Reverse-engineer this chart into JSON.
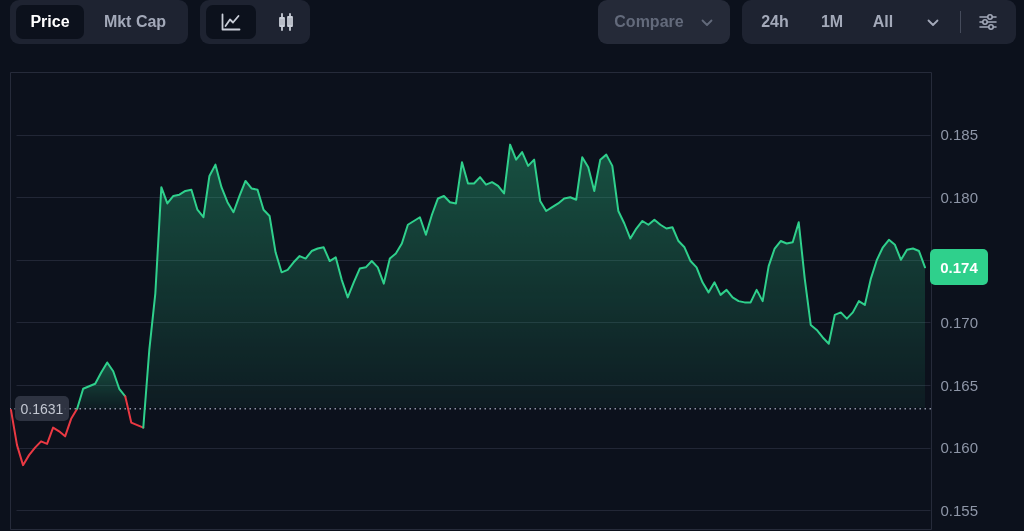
{
  "chart_data": {
    "type": "area",
    "categories": [
      null,
      null,
      null,
      null,
      null,
      null,
      null,
      null,
      null,
      null,
      null,
      null,
      null,
      null,
      null,
      null,
      null,
      null,
      null,
      null,
      null,
      null,
      null,
      null,
      null,
      null,
      null,
      null,
      null,
      null,
      null,
      null,
      null,
      null,
      null,
      null,
      null,
      null,
      null,
      null,
      null,
      null,
      null,
      null,
      null,
      null,
      null,
      null,
      null,
      null,
      null,
      null,
      null,
      null,
      null,
      null,
      null,
      null,
      null,
      null,
      null,
      null,
      null,
      null,
      null,
      null,
      null,
      null,
      null,
      null,
      null,
      null,
      null,
      null,
      null,
      null,
      null,
      null,
      null,
      null,
      null,
      null,
      null,
      null,
      null,
      null,
      null,
      null,
      null,
      null,
      null,
      null,
      null,
      null,
      null,
      null,
      null,
      null,
      null,
      null,
      null,
      null,
      null,
      null,
      null,
      null,
      null,
      null,
      null,
      null,
      null,
      null,
      null,
      null,
      null,
      null,
      null,
      null,
      null,
      null,
      null,
      null,
      null,
      null,
      null,
      null,
      null,
      null,
      null,
      null,
      null,
      null,
      null,
      null,
      null,
      null,
      null,
      null,
      null,
      null,
      null,
      null,
      null,
      null,
      null,
      null,
      null,
      null,
      null,
      null,
      null,
      null,
      null
    ],
    "series": [
      {
        "type": "line",
        "color": "#ea3943",
        "values": [
          0.163,
          0.1602,
          0.1586,
          0.1594,
          0.16,
          0.1605,
          0.1603,
          0.1616,
          0.1613,
          0.1609,
          0.1623,
          0.1631,
          null,
          null,
          null,
          null,
          null,
          null,
          null,
          null,
          null,
          null,
          null,
          null,
          null,
          null,
          null,
          null,
          null,
          null,
          null,
          null,
          null,
          null,
          null,
          null,
          null,
          null,
          null,
          null,
          null,
          null,
          null,
          null,
          null,
          null,
          null,
          null,
          null,
          null,
          null,
          null,
          null,
          null,
          null,
          null,
          null,
          null,
          null,
          null,
          null,
          null,
          null,
          null,
          null,
          null,
          null,
          null,
          null,
          null,
          null,
          null,
          null,
          null,
          null,
          null,
          null,
          null,
          null,
          null,
          null,
          null,
          null,
          null,
          null,
          null,
          null,
          null,
          null,
          null,
          null,
          null,
          null,
          null,
          null,
          null,
          null,
          null,
          null,
          null,
          null,
          null,
          null,
          null,
          null,
          null,
          null,
          null,
          null,
          null,
          null,
          null,
          null,
          null,
          null,
          null,
          null,
          null,
          null,
          null,
          null,
          null,
          null,
          null,
          null,
          null,
          null,
          null,
          null,
          null,
          null,
          null,
          null,
          null,
          null,
          null,
          null,
          null,
          null,
          null,
          null,
          null,
          null,
          null,
          null,
          null,
          null,
          null,
          null,
          null,
          null,
          null,
          null
        ]
      },
      {
        "color": "#2fd08c",
        "values": [
          null,
          null,
          null,
          null,
          null,
          null,
          null,
          null,
          null,
          null,
          null,
          0.1631,
          0.1647,
          0.1649,
          0.1651,
          0.166,
          0.1668,
          0.1661,
          0.1647,
          0.1641,
          null,
          null,
          null,
          null,
          null,
          null,
          null,
          null,
          null,
          null,
          null,
          null,
          null,
          null,
          null,
          null,
          null,
          null,
          null,
          null,
          null,
          null,
          null,
          null,
          null,
          null,
          null,
          null,
          null,
          null,
          null,
          null,
          null,
          null,
          null,
          null,
          null,
          null,
          null,
          null,
          null,
          null,
          null,
          null,
          null,
          null,
          null,
          null,
          null,
          null,
          null,
          null,
          null,
          null,
          null,
          null,
          null,
          null,
          null,
          null,
          null,
          null,
          null,
          null,
          null,
          null,
          null,
          null,
          null,
          null,
          null,
          null,
          null,
          null,
          null,
          null,
          null,
          null,
          null,
          null,
          null,
          null,
          null,
          null,
          null,
          null,
          null,
          null,
          null,
          null,
          null,
          null,
          null,
          null,
          null,
          null,
          null,
          null,
          null,
          null,
          null,
          null,
          null,
          null,
          null,
          null,
          null,
          null,
          null,
          null,
          null,
          null,
          null,
          null,
          null,
          null,
          null,
          null,
          null,
          null,
          null,
          null,
          null,
          null,
          null,
          null,
          null,
          null,
          null,
          null,
          null,
          null,
          null
        ]
      },
      {
        "type": "line",
        "color": "#ea3943",
        "values": [
          null,
          null,
          null,
          null,
          null,
          null,
          null,
          null,
          null,
          null,
          null,
          null,
          null,
          null,
          null,
          null,
          null,
          null,
          null,
          0.1641,
          0.162,
          0.1618,
          0.1616,
          null,
          null,
          null,
          null,
          null,
          null,
          null,
          null,
          null,
          null,
          null,
          null,
          null,
          null,
          null,
          null,
          null,
          null,
          null,
          null,
          null,
          null,
          null,
          null,
          null,
          null,
          null,
          null,
          null,
          null,
          null,
          null,
          null,
          null,
          null,
          null,
          null,
          null,
          null,
          null,
          null,
          null,
          null,
          null,
          null,
          null,
          null,
          null,
          null,
          null,
          null,
          null,
          null,
          null,
          null,
          null,
          null,
          null,
          null,
          null,
          null,
          null,
          null,
          null,
          null,
          null,
          null,
          null,
          null,
          null,
          null,
          null,
          null,
          null,
          null,
          null,
          null,
          null,
          null,
          null,
          null,
          null,
          null,
          null,
          null,
          null,
          null,
          null,
          null,
          null,
          null,
          null,
          null,
          null,
          null,
          null,
          null,
          null,
          null,
          null,
          null,
          null,
          null,
          null,
          null,
          null,
          null,
          null,
          null,
          null,
          null,
          null,
          null,
          null,
          null,
          null,
          null,
          null,
          null,
          null,
          null,
          null,
          null,
          null,
          null,
          null,
          null,
          null,
          null,
          null
        ]
      },
      {
        "color": "#2fd08c",
        "values": [
          null,
          null,
          null,
          null,
          null,
          null,
          null,
          null,
          null,
          null,
          null,
          null,
          null,
          null,
          null,
          null,
          null,
          null,
          null,
          null,
          null,
          null,
          0.1616,
          0.1678,
          0.1723,
          0.1808,
          0.1795,
          0.1801,
          0.1802,
          0.1805,
          0.1806,
          0.179,
          0.1784,
          0.1817,
          0.1826,
          0.1808,
          0.1796,
          0.1788,
          0.1801,
          0.1813,
          0.1807,
          0.1806,
          0.179,
          0.1785,
          0.1756,
          0.174,
          0.1742,
          0.1748,
          0.1753,
          0.1751,
          0.1757,
          0.1759,
          0.176,
          0.1749,
          0.1752,
          0.1734,
          0.172,
          0.1732,
          0.1743,
          0.1744,
          0.1749,
          0.1744,
          0.1731,
          0.1751,
          0.1755,
          0.1763,
          0.1778,
          0.1781,
          0.1784,
          0.177,
          0.1786,
          0.1799,
          0.1801,
          0.1796,
          0.1795,
          0.1828,
          0.1811,
          0.1811,
          0.1816,
          0.181,
          0.1812,
          0.1809,
          0.1803,
          0.1842,
          0.183,
          0.1836,
          0.1825,
          0.183,
          0.1797,
          0.1789,
          0.1792,
          0.1795,
          0.1799,
          0.18,
          0.1798,
          0.1832,
          0.1824,
          0.1805,
          0.183,
          0.1834,
          0.1825,
          0.1789,
          0.1779,
          0.1767,
          0.1775,
          0.1781,
          0.1778,
          0.1782,
          0.1778,
          0.1775,
          0.1776,
          0.1765,
          0.176,
          0.1749,
          0.1744,
          0.1732,
          0.1724,
          0.1732,
          0.1722,
          0.1726,
          0.172,
          0.1717,
          0.1716,
          0.1716,
          0.1726,
          0.1717,
          0.1745,
          0.1759,
          0.1765,
          0.1763,
          0.1764,
          0.178,
          0.1735,
          0.1698,
          0.1694,
          0.1688,
          0.1683,
          0.1706,
          0.1708,
          0.1703,
          0.1708,
          0.1717,
          0.1714,
          0.1735,
          0.175,
          0.176,
          0.1766,
          0.1762,
          0.175,
          0.1758,
          0.1759,
          0.1757,
          0.1744
        ]
      }
    ],
    "ylim": [
      0.1535,
      0.19
    ],
    "yticks": [
      0.155,
      {
        "value": 0.16,
        "label": "0.160"
      },
      0.165,
      {
        "value": 0.17,
        "label": "0.170"
      },
      {
        "value": 0.175,
        "label": null
      },
      {
        "value": 0.18,
        "label": "0.180"
      },
      0.185
    ],
    "grid": "y",
    "tick_labels": "y",
    "line_style": "solid",
    "ref_lines": [
      {
        "axis": "y",
        "value": 0.1631,
        "label": "0.1631",
        "line_style": "dotted",
        "color": "#8b93a5"
      }
    ],
    "annotations": [
      "Price",
      "Mkt Cap",
      "Compare",
      "24h",
      "1M",
      "All",
      "0.174"
    ]
  }
}
